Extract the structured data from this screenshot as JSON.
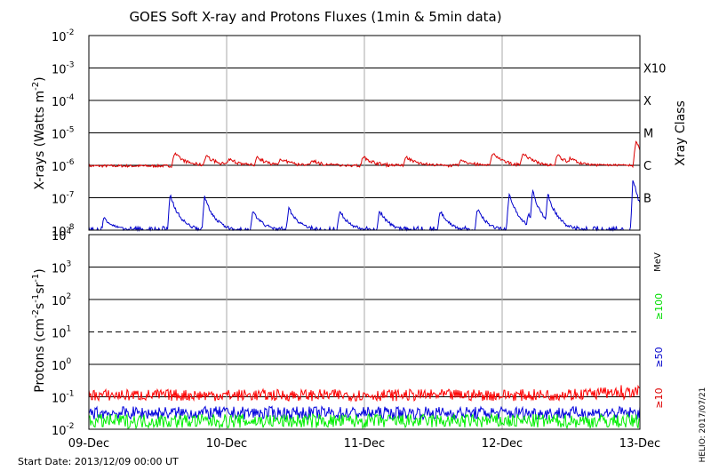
{
  "page": {
    "title": "GOES Soft X-ray and Protons Fluxes   (1min & 5min data)",
    "start_date": "Start Date: 2013/12/09 00:00 UT",
    "credit": "HELIO: 2017/07/21"
  },
  "chart_data": [
    {
      "type": "line",
      "panel": "xray",
      "ylabel": "X-rays (Watts m-2)",
      "ylabel_main": "X-rays (Watts m",
      "ylabel_sup": "-2",
      "ylabel_close": ")",
      "yscale": "log",
      "ylim_exp": [
        -8,
        -2
      ],
      "y_ticks_exp": [
        -8,
        -7,
        -6,
        -5,
        -4,
        -3,
        -2
      ],
      "y_tick_base": "10",
      "x_categories": [
        "09-Dec",
        "10-Dec",
        "11-Dec",
        "12-Dec",
        "13-Dec"
      ],
      "x_range_days": [
        0,
        4
      ],
      "grid": true,
      "right_axis": {
        "title": "Xray Class",
        "classes": [
          {
            "label": "X10",
            "exp": -3
          },
          {
            "label": "X",
            "exp": -4
          },
          {
            "label": "M",
            "exp": -5
          },
          {
            "label": "C",
            "exp": -6
          },
          {
            "label": "B",
            "exp": -7
          }
        ]
      },
      "series": [
        {
          "color": "#dd0000",
          "baseline_exp": -6.02,
          "events": [
            {
              "day": 0.62,
              "peak_exp": -5.62
            },
            {
              "day": 0.85,
              "peak_exp": -5.7
            },
            {
              "day": 1.02,
              "peak_exp": -5.8
            },
            {
              "day": 1.22,
              "peak_exp": -5.75
            },
            {
              "day": 1.39,
              "peak_exp": -5.78
            },
            {
              "day": 1.62,
              "peak_exp": -5.85
            },
            {
              "day": 1.99,
              "peak_exp": -5.72
            },
            {
              "day": 2.3,
              "peak_exp": -5.72
            },
            {
              "day": 2.7,
              "peak_exp": -5.82
            },
            {
              "day": 2.93,
              "peak_exp": -5.62
            },
            {
              "day": 3.15,
              "peak_exp": -5.6
            },
            {
              "day": 3.4,
              "peak_exp": -5.68
            },
            {
              "day": 3.49,
              "peak_exp": -5.78
            },
            {
              "day": 3.97,
              "peak_exp": -5.25
            }
          ]
        },
        {
          "color": "#0000cc",
          "baseline_exp": -8.05,
          "events": [
            {
              "day": 0.11,
              "peak_exp": -7.6
            },
            {
              "day": 0.59,
              "peak_exp": -6.9
            },
            {
              "day": 0.84,
              "peak_exp": -6.95
            },
            {
              "day": 1.19,
              "peak_exp": -7.4
            },
            {
              "day": 1.45,
              "peak_exp": -7.3
            },
            {
              "day": 1.82,
              "peak_exp": -7.4
            },
            {
              "day": 2.11,
              "peak_exp": -7.4
            },
            {
              "day": 2.55,
              "peak_exp": -7.4
            },
            {
              "day": 2.82,
              "peak_exp": -7.35
            },
            {
              "day": 3.05,
              "peak_exp": -6.85
            },
            {
              "day": 3.19,
              "peak_exp": -7.5
            },
            {
              "day": 3.22,
              "peak_exp": -6.75
            },
            {
              "day": 3.33,
              "peak_exp": -6.85
            },
            {
              "day": 3.95,
              "peak_exp": -6.4
            }
          ]
        }
      ]
    },
    {
      "type": "line",
      "panel": "protons",
      "ylabel": "Protons (cm-2s-1sr-1)",
      "yscale": "log",
      "ylim_exp": [
        -2,
        4
      ],
      "y_ticks": [
        "10-2",
        "10-1",
        "100",
        "101",
        "102",
        "103",
        "104"
      ],
      "y_tick_labels": [
        {
          "base": "10",
          "sup": "-2"
        },
        {
          "base": "10",
          "sup": "-1"
        },
        {
          "base": "10",
          "sup": "0"
        },
        {
          "base": "10",
          "sup": "1"
        },
        {
          "base": "10",
          "sup": "2"
        },
        {
          "base": "10",
          "sup": "3"
        },
        {
          "base": "10",
          "sup": "4"
        }
      ],
      "y_ticks_exp": [
        -2,
        -1,
        0,
        1,
        2,
        3,
        4
      ],
      "x_categories": [
        "09-Dec",
        "10-Dec",
        "11-Dec",
        "12-Dec",
        "13-Dec"
      ],
      "threshold_exp": 1,
      "right_axis": {
        "unit": "MeV",
        "legend": [
          {
            "label": "≥100",
            "color": "#00dd00"
          },
          {
            "label": "≥50",
            "color": "#0000cc"
          },
          {
            "label": "≥10",
            "color": "#dd0000"
          }
        ]
      },
      "series": [
        {
          "name": "≥10",
          "color": "#ff0000",
          "level_exp": -0.95,
          "spread": 0.18
        },
        {
          "name": "≥50",
          "color": "#0000dd",
          "level_exp": -1.5,
          "spread": 0.2
        },
        {
          "name": "≥100",
          "color": "#00ee00",
          "level_exp": -1.75,
          "spread": 0.22
        }
      ]
    }
  ]
}
